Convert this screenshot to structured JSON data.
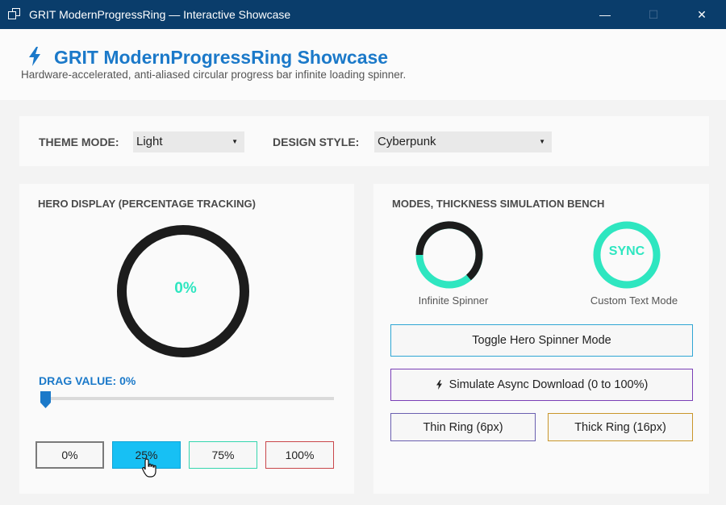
{
  "window": {
    "title": "GRIT ModernProgressRing — Interactive Showcase",
    "minimize": "—",
    "maximize": "☐",
    "close": "✕"
  },
  "header": {
    "title": "GRIT ModernProgressRing Showcase",
    "subtitle": "Hardware-accelerated, anti-aliased circular progress bar  infinite loading spinner.",
    "icon": "bolt-icon",
    "accent_color": "#1b79c9"
  },
  "theme": {
    "theme_label": "THEME MODE:",
    "theme_value": "Light",
    "style_label": "DESIGN STYLE:",
    "style_value": "Cyberpunk"
  },
  "hero": {
    "section_title": "HERO DISPLAY (PERCENTAGE TRACKING)",
    "percent_text": "0%",
    "progress": 0,
    "ring_track_color": "#1c1c1c",
    "ring_accent_color": "#2ee6c0",
    "drag_label": "DRAG VALUE: 0%",
    "slider_value": 0,
    "presets": [
      "0%",
      "25%",
      "75%",
      "100%"
    ]
  },
  "bench": {
    "section_title": "MODES, THICKNESS  SIMULATION BENCH",
    "spinner_caption": "Infinite Spinner",
    "custom_caption": "Custom Text Mode",
    "custom_text": "SYNC",
    "toggle_label": "Toggle Hero Spinner Mode",
    "simulate_label": "Simulate Async Download (0 to 100%)",
    "thin_label": "Thin Ring (6px)",
    "thick_label": "Thick Ring (16px)"
  }
}
